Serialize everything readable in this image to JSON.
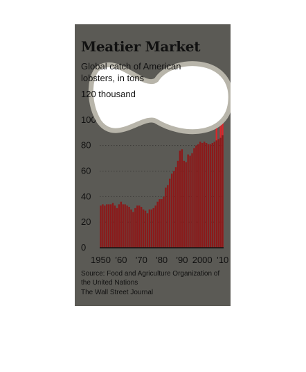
{
  "chart_data": {
    "type": "bar",
    "title": "Meatier Market",
    "subtitle": "Global catch of American lobsters, in tons",
    "y_unit_label": "thousand",
    "ylim": [
      0,
      120
    ],
    "y_ticks": [
      0,
      20,
      40,
      60,
      80,
      100,
      120
    ],
    "x_tick_labels": [
      {
        "year": 1950,
        "label": "1950"
      },
      {
        "year": 1960,
        "label": "’60"
      },
      {
        "year": 1970,
        "label": "’70"
      },
      {
        "year": 1980,
        "label": "’80"
      },
      {
        "year": 1990,
        "label": "’90"
      },
      {
        "year": 2000,
        "label": "2000"
      },
      {
        "year": 2010,
        "label": "’10"
      }
    ],
    "grid": true,
    "categories": [
      1950,
      1951,
      1952,
      1953,
      1954,
      1955,
      1956,
      1957,
      1958,
      1959,
      1960,
      1961,
      1962,
      1963,
      1964,
      1965,
      1966,
      1967,
      1968,
      1969,
      1970,
      1971,
      1972,
      1973,
      1974,
      1975,
      1976,
      1977,
      1978,
      1979,
      1980,
      1981,
      1982,
      1983,
      1984,
      1985,
      1986,
      1987,
      1988,
      1989,
      1990,
      1991,
      1992,
      1993,
      1994,
      1995,
      1996,
      1997,
      1998,
      1999,
      2000,
      2001,
      2002,
      2003,
      2004,
      2005,
      2006,
      2007,
      2008,
      2009,
      2010
    ],
    "series": [
      {
        "color": "#8b1a1a",
        "values": [
          33,
          34,
          33,
          34,
          34,
          34,
          35,
          33,
          31,
          34,
          36,
          34,
          34,
          33,
          32,
          30,
          28,
          31,
          33,
          33,
          32,
          30,
          29,
          27,
          30,
          30,
          31,
          33,
          36,
          38,
          38,
          40,
          47,
          49,
          54,
          58,
          60,
          63,
          68,
          76,
          77,
          68,
          67,
          73,
          72,
          74,
          78,
          80,
          81,
          83,
          82,
          83,
          82,
          81,
          81,
          82,
          83,
          84,
          85,
          86,
          88
        ]
      },
      {
        "color": "#d9262b",
        "values": [
          null,
          null,
          null,
          null,
          null,
          null,
          null,
          null,
          null,
          null,
          null,
          null,
          null,
          null,
          null,
          null,
          null,
          null,
          null,
          null,
          null,
          null,
          null,
          null,
          null,
          null,
          null,
          null,
          null,
          null,
          null,
          null,
          null,
          null,
          null,
          null,
          null,
          null,
          null,
          null,
          null,
          null,
          null,
          null,
          null,
          null,
          null,
          null,
          null,
          null,
          null,
          null,
          null,
          null,
          null,
          null,
          null,
          97,
          null,
          97,
          116
        ]
      }
    ]
  },
  "footer": {
    "source": "Source: Food and Agriculture Organization of the United Nations",
    "publisher": "The Wall Street Journal"
  },
  "colors": {
    "background": "#5b5a55",
    "gridline": "#3a3936",
    "overlay_fill": "#ffffff",
    "overlay_stroke": "#b8b5aa"
  }
}
